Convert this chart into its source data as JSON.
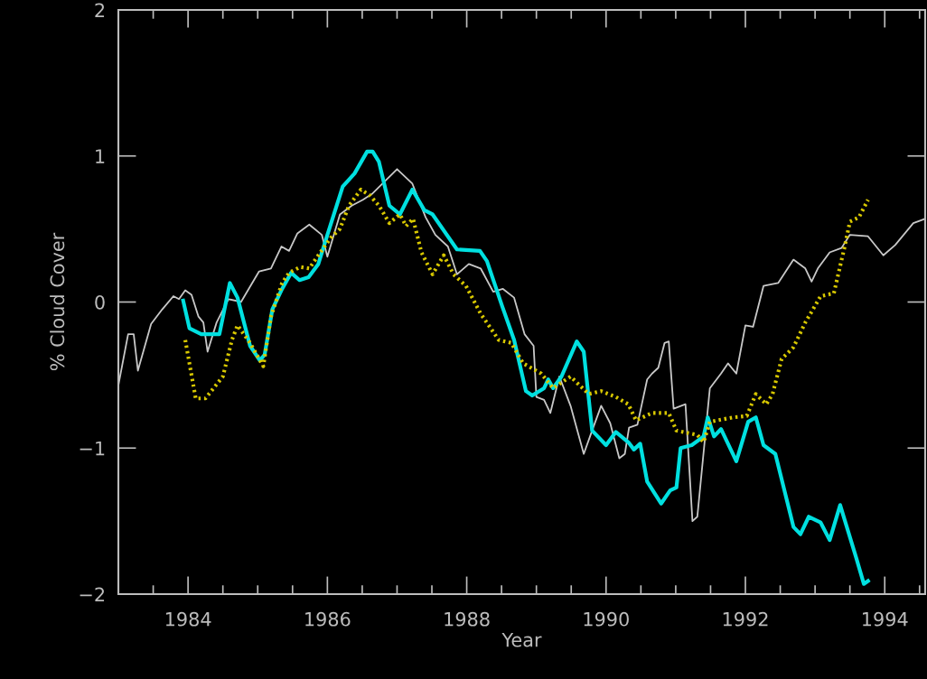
{
  "chart_data": {
    "type": "line",
    "xlabel": "Year",
    "ylabel": "% Cloud Cover",
    "xlim": [
      1983,
      1994.58
    ],
    "xticks": [
      1984,
      1986,
      1988,
      1990,
      1992,
      1994
    ],
    "ylim": [
      -2,
      2
    ],
    "yticks": [
      -2,
      -1,
      0,
      1,
      2
    ],
    "grid": false,
    "marker": "none",
    "line_style": "solid",
    "series": [
      {
        "color": "#c8c8c8",
        "x": [
          1983.0,
          1983.14,
          1983.22,
          1983.28,
          1983.47,
          1983.63,
          1983.79,
          1983.87,
          1983.96,
          1984.05,
          1984.15,
          1984.22,
          1984.28,
          1984.41,
          1984.58,
          1984.76,
          1985.02,
          1985.19,
          1985.34,
          1985.45,
          1985.57,
          1985.74,
          1985.92,
          1986.0,
          1986.18,
          1986.35,
          1986.51,
          1986.64,
          1987.0,
          1987.22,
          1987.41,
          1987.55,
          1987.73,
          1987.86,
          1988.03,
          1988.2,
          1988.38,
          1988.52,
          1988.68,
          1988.83,
          1988.96,
          1989.0,
          1989.11,
          1989.2,
          1989.33,
          1989.49,
          1989.68,
          1989.8,
          1989.93,
          1990.06,
          1990.19,
          1990.27,
          1990.33,
          1990.45,
          1990.59,
          1990.66,
          1990.75,
          1990.84,
          1990.9,
          1990.97,
          1991.14,
          1991.24,
          1991.31,
          1991.49,
          1991.65,
          1991.75,
          1991.87,
          1992.0,
          1992.11,
          1992.26,
          1992.47,
          1992.69,
          1992.86,
          1992.95,
          1993.04,
          1993.21,
          1993.38,
          1993.5,
          1993.76,
          1993.98,
          1994.15,
          1994.41,
          1994.58
        ],
        "values": [
          -0.57,
          -0.22,
          -0.22,
          -0.47,
          -0.15,
          -0.05,
          0.04,
          0.02,
          0.08,
          0.05,
          -0.1,
          -0.14,
          -0.34,
          -0.14,
          0.02,
          0.0,
          0.21,
          0.23,
          0.38,
          0.35,
          0.47,
          0.53,
          0.46,
          0.31,
          0.6,
          0.66,
          0.7,
          0.74,
          0.91,
          0.81,
          0.58,
          0.46,
          0.38,
          0.19,
          0.26,
          0.23,
          0.07,
          0.09,
          0.03,
          -0.22,
          -0.3,
          -0.65,
          -0.67,
          -0.76,
          -0.51,
          -0.71,
          -1.04,
          -0.88,
          -0.71,
          -0.83,
          -1.07,
          -1.04,
          -0.86,
          -0.84,
          -0.53,
          -0.49,
          -0.45,
          -0.28,
          -0.27,
          -0.73,
          -0.7,
          -1.5,
          -1.47,
          -0.59,
          -0.49,
          -0.42,
          -0.49,
          -0.16,
          -0.17,
          0.11,
          0.13,
          0.29,
          0.23,
          0.14,
          0.23,
          0.34,
          0.37,
          0.46,
          0.45,
          0.32,
          0.39,
          0.54,
          0.57
        ]
      },
      {
        "color": "#00e0e0",
        "x": [
          1983.93,
          1984.02,
          1984.19,
          1984.45,
          1984.6,
          1984.71,
          1984.89,
          1985.03,
          1985.1,
          1985.21,
          1985.35,
          1985.48,
          1985.6,
          1985.73,
          1985.87,
          1986.0,
          1986.22,
          1986.39,
          1986.57,
          1986.65,
          1986.74,
          1986.89,
          1987.04,
          1987.22,
          1987.39,
          1987.51,
          1987.86,
          1988.19,
          1988.29,
          1988.51,
          1988.68,
          1988.85,
          1988.94,
          1989.11,
          1989.17,
          1989.24,
          1989.36,
          1989.58,
          1989.68,
          1989.8,
          1990.0,
          1990.14,
          1990.32,
          1990.4,
          1990.49,
          1990.59,
          1990.79,
          1990.92,
          1991.01,
          1991.07,
          1991.23,
          1991.4,
          1991.46,
          1991.55,
          1991.65,
          1991.87,
          1992.04,
          1992.15,
          1992.26,
          1992.43,
          1992.69,
          1992.79,
          1992.91,
          1993.08,
          1993.21,
          1993.36,
          1993.59,
          1993.7,
          1993.76
        ],
        "values": [
          0.01,
          -0.18,
          -0.22,
          -0.22,
          0.13,
          0.03,
          -0.3,
          -0.4,
          -0.36,
          -0.05,
          0.09,
          0.2,
          0.15,
          0.17,
          0.26,
          0.46,
          0.79,
          0.88,
          1.03,
          1.03,
          0.96,
          0.66,
          0.6,
          0.77,
          0.63,
          0.6,
          0.36,
          0.35,
          0.28,
          -0.03,
          -0.26,
          -0.61,
          -0.64,
          -0.59,
          -0.53,
          -0.59,
          -0.51,
          -0.27,
          -0.34,
          -0.88,
          -0.98,
          -0.89,
          -0.96,
          -1.01,
          -0.97,
          -1.23,
          -1.38,
          -1.29,
          -1.27,
          -1.0,
          -0.98,
          -0.92,
          -0.79,
          -0.92,
          -0.87,
          -1.09,
          -0.82,
          -0.79,
          -0.98,
          -1.04,
          -1.54,
          -1.59,
          -1.47,
          -1.51,
          -1.63,
          -1.39,
          -1.75,
          -1.93,
          -1.91
        ]
      },
      {
        "color": "#d8c800",
        "line_style": "dotted",
        "x": [
          1983.96,
          1984.11,
          1984.25,
          1984.5,
          1984.63,
          1984.71,
          1984.89,
          1985.08,
          1985.19,
          1985.35,
          1985.45,
          1985.61,
          1985.74,
          1985.87,
          1986.05,
          1986.18,
          1986.31,
          1986.48,
          1986.61,
          1986.74,
          1986.89,
          1987.04,
          1987.13,
          1987.23,
          1987.35,
          1987.51,
          1987.67,
          1987.81,
          1987.99,
          1988.2,
          1988.46,
          1988.64,
          1988.81,
          1989.07,
          1989.24,
          1989.49,
          1989.75,
          1989.93,
          1990.14,
          1990.32,
          1990.43,
          1990.66,
          1990.9,
          1991.01,
          1991.31,
          1991.4,
          1991.49,
          1991.82,
          1992.02,
          1992.15,
          1992.3,
          1992.39,
          1992.52,
          1992.69,
          1992.86,
          1993.08,
          1993.27,
          1993.43,
          1993.5,
          1993.63,
          1993.76
        ],
        "values": [
          -0.26,
          -0.66,
          -0.66,
          -0.51,
          -0.26,
          -0.16,
          -0.28,
          -0.44,
          -0.1,
          0.13,
          0.2,
          0.24,
          0.23,
          0.32,
          0.44,
          0.5,
          0.66,
          0.77,
          0.73,
          0.66,
          0.54,
          0.6,
          0.52,
          0.57,
          0.34,
          0.19,
          0.32,
          0.19,
          0.11,
          -0.08,
          -0.26,
          -0.28,
          -0.42,
          -0.49,
          -0.59,
          -0.51,
          -0.63,
          -0.61,
          -0.65,
          -0.7,
          -0.81,
          -0.76,
          -0.76,
          -0.88,
          -0.91,
          -0.96,
          -0.82,
          -0.79,
          -0.78,
          -0.63,
          -0.7,
          -0.63,
          -0.39,
          -0.31,
          -0.14,
          0.04,
          0.06,
          0.39,
          0.55,
          0.58,
          0.7
        ]
      }
    ]
  }
}
